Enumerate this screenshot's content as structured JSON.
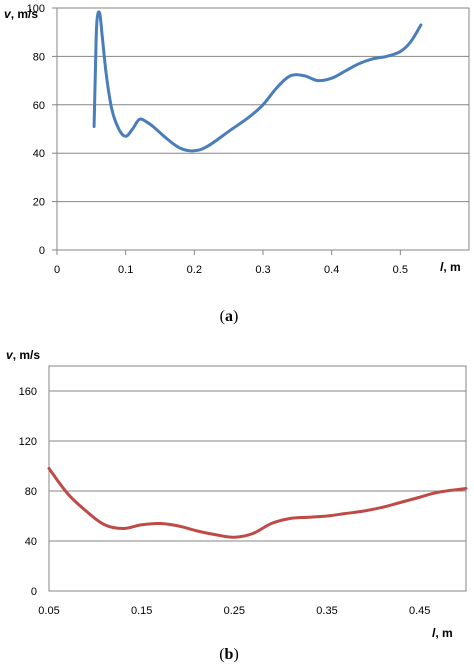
{
  "chart_data": [
    {
      "type": "line",
      "caption": {
        "open": "(",
        "letter": "a",
        "close": ")"
      },
      "ylabel": {
        "var": "v",
        "unit": ", m/s"
      },
      "xlabel": {
        "var": "l",
        "unit": ", m"
      },
      "xlim": [
        0,
        0.6
      ],
      "ylim": [
        0,
        100
      ],
      "xticks": [
        0,
        0.1,
        0.2,
        0.3,
        0.4,
        0.5
      ],
      "xtick_labels": [
        "0",
        "0.1",
        "0.2",
        "0.3",
        "0.4",
        "0.5"
      ],
      "yticks": [
        0,
        20,
        40,
        60,
        80,
        100
      ],
      "ytick_labels": [
        "0",
        "20",
        "40",
        "60",
        "80",
        "100"
      ],
      "grid": true,
      "series": [
        {
          "color": "#4a7ebb",
          "x": [
            0.054,
            0.056,
            0.058,
            0.062,
            0.066,
            0.072,
            0.08,
            0.09,
            0.1,
            0.11,
            0.12,
            0.13,
            0.14,
            0.16,
            0.18,
            0.2,
            0.22,
            0.25,
            0.28,
            0.3,
            0.32,
            0.34,
            0.36,
            0.38,
            0.4,
            0.42,
            0.44,
            0.46,
            0.48,
            0.5,
            0.515,
            0.53
          ],
          "y": [
            51,
            75,
            94,
            98,
            88,
            72,
            58,
            50,
            47,
            50,
            54,
            53,
            51,
            46,
            42,
            41,
            43,
            49,
            55,
            60,
            67,
            72,
            72,
            70,
            71,
            74,
            77,
            79,
            80,
            82,
            86,
            93
          ]
        }
      ]
    },
    {
      "type": "line",
      "caption": {
        "open": "(",
        "letter": "b",
        "close": ")"
      },
      "ylabel": {
        "var": "v",
        "unit": ", m/s"
      },
      "xlabel": {
        "var": "l",
        "unit": ", m"
      },
      "xlim": [
        0.05,
        0.5
      ],
      "ylim": [
        0,
        180
      ],
      "xticks": [
        0.05,
        0.15,
        0.25,
        0.35,
        0.45
      ],
      "xtick_labels": [
        "0.05",
        "0.15",
        "0.25",
        "0.35",
        "0.45"
      ],
      "yticks": [
        0,
        40,
        80,
        120,
        160
      ],
      "ytick_labels": [
        "0",
        "40",
        "80",
        "120",
        "160"
      ],
      "grid": true,
      "series": [
        {
          "color": "#be4b48",
          "x": [
            0.05,
            0.07,
            0.09,
            0.11,
            0.13,
            0.15,
            0.17,
            0.19,
            0.21,
            0.23,
            0.25,
            0.27,
            0.29,
            0.31,
            0.33,
            0.35,
            0.37,
            0.39,
            0.41,
            0.43,
            0.45,
            0.47,
            0.5
          ],
          "y": [
            98,
            78,
            64,
            53,
            50,
            53,
            54,
            52,
            48,
            45,
            43,
            46,
            54,
            58,
            59,
            60,
            62,
            64,
            67,
            71,
            75,
            79,
            82
          ]
        }
      ]
    }
  ]
}
